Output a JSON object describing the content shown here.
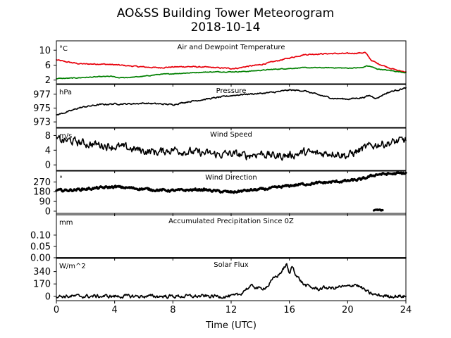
{
  "figure": {
    "title": "AO&SS Building Tower Meteorogram",
    "subtitle": "2018-10-14",
    "xlabel": "Time (UTC)"
  },
  "chart_data": [
    {
      "type": "line",
      "title": "Air and Dewpoint Temperature",
      "unit": "°C",
      "xlim": [
        0,
        24
      ],
      "ylim": [
        1,
        12.5
      ],
      "yticks": [
        2,
        6,
        10
      ],
      "series": [
        {
          "color": "#e8000b",
          "x": [
            0,
            0.5,
            1,
            1.5,
            2,
            3,
            4,
            5,
            6,
            7,
            8,
            9,
            10,
            11,
            12,
            12.5,
            13,
            14,
            15,
            16,
            17,
            18,
            19,
            20,
            21,
            21.2,
            21.6,
            22,
            22.5,
            23,
            23.5,
            24
          ],
          "y": [
            7.4,
            7.0,
            6.7,
            6.4,
            6.3,
            6.3,
            6.1,
            5.8,
            5.5,
            5.3,
            5.5,
            5.6,
            5.5,
            5.3,
            5.1,
            5.2,
            5.6,
            6.1,
            7.0,
            7.9,
            8.8,
            9.0,
            9.1,
            9.1,
            9.3,
            9.4,
            7.4,
            6.5,
            5.8,
            5.1,
            4.5,
            4.2
          ],
          "jitter": 0.12
        },
        {
          "color": "#008000",
          "x": [
            0,
            1,
            2,
            3,
            3.8,
            4.2,
            5,
            6,
            7,
            8,
            9,
            10,
            11,
            12,
            13,
            14,
            15,
            16,
            17,
            18,
            19,
            20,
            21,
            21.3,
            21.6,
            22,
            23,
            24
          ],
          "y": [
            2.4,
            2.5,
            2.7,
            2.9,
            3.0,
            2.6,
            2.7,
            3.0,
            3.5,
            3.7,
            3.9,
            4.1,
            4.2,
            4.2,
            4.3,
            4.6,
            4.9,
            5.1,
            5.3,
            5.3,
            5.3,
            5.2,
            5.3,
            5.8,
            5.6,
            5.0,
            4.5,
            4.0
          ],
          "jitter": 0.08
        }
      ]
    },
    {
      "type": "line",
      "title": "Pressure",
      "unit": "hPa",
      "xlim": [
        0,
        24
      ],
      "ylim": [
        972.2,
        978.4
      ],
      "yticks": [
        973,
        975,
        977
      ],
      "series": [
        {
          "color": "#000000",
          "x": [
            0,
            0.5,
            1,
            1.5,
            2,
            3,
            4,
            5,
            6,
            7,
            8,
            9,
            10,
            11,
            12,
            13,
            14,
            15,
            16,
            17,
            18,
            19,
            20,
            21,
            21.5,
            22,
            22.5,
            23,
            24
          ],
          "y": [
            974.0,
            974.3,
            974.6,
            975.0,
            975.2,
            975.5,
            975.6,
            975.6,
            975.7,
            975.6,
            975.5,
            975.9,
            976.2,
            976.5,
            976.8,
            977.0,
            977.1,
            977.3,
            977.6,
            977.5,
            976.9,
            976.4,
            976.3,
            976.5,
            976.8,
            976.4,
            977.0,
            977.4,
            977.9
          ],
          "jitter": 0.08
        }
      ]
    },
    {
      "type": "line",
      "title": "Wind Speed",
      "unit": "m/s",
      "xlim": [
        0,
        24
      ],
      "ylim": [
        -1.5,
        10
      ],
      "yticks": [
        0,
        4,
        8
      ],
      "series": [
        {
          "color": "#000000",
          "x": [
            0,
            1,
            2,
            3,
            4,
            5,
            6,
            7,
            8,
            9,
            10,
            11,
            12,
            13,
            14,
            15,
            16,
            17,
            18,
            19,
            20,
            21,
            22,
            23,
            24
          ],
          "y": [
            6.8,
            6.5,
            5.8,
            5.5,
            5.0,
            4.5,
            3.8,
            3.5,
            4.2,
            3.6,
            3.2,
            2.8,
            3.0,
            2.5,
            3.2,
            2.4,
            2.6,
            3.4,
            3.0,
            3.4,
            2.5,
            4.3,
            5.6,
            6.0,
            6.8
          ],
          "jitter": 0.9
        }
      ]
    },
    {
      "type": "line",
      "title": "Wind Direction",
      "unit": "°",
      "xlim": [
        0,
        24
      ],
      "ylim": [
        -20,
        370
      ],
      "yticks": [
        0,
        90,
        180,
        270
      ],
      "series": [
        {
          "color": "#000000",
          "x": [
            0,
            1,
            2,
            3,
            4,
            5,
            6,
            7,
            8,
            9,
            10,
            11,
            12,
            13,
            14,
            15,
            16,
            17,
            18,
            19,
            20,
            21,
            21.3,
            22,
            23,
            24
          ],
          "y": [
            190,
            195,
            205,
            215,
            225,
            215,
            205,
            195,
            190,
            195,
            200,
            185,
            175,
            190,
            200,
            215,
            235,
            250,
            260,
            270,
            280,
            295,
            310,
            340,
            345,
            350
          ],
          "jitter": 9
        },
        {
          "color": "#000000",
          "x": [
            21.8,
            22.0,
            22.2,
            22.4
          ],
          "y": [
            8,
            12,
            10,
            6
          ],
          "jitter": 4
        }
      ]
    },
    {
      "type": "area",
      "title": "Accumulated Precipitation Since 0Z",
      "unit": "mm",
      "xlim": [
        0,
        24
      ],
      "ylim": [
        0,
        0.19
      ],
      "yticks": [
        0.0,
        0.05,
        0.1
      ],
      "ytick_labels": [
        "0.00",
        "0.05",
        "0.10"
      ],
      "series": [
        {
          "color": "#000000",
          "x": [
            0,
            24
          ],
          "y": [
            0,
            0
          ],
          "jitter": 0
        }
      ]
    },
    {
      "type": "line",
      "title": "Solar Flux",
      "unit": "W/m^2",
      "xlim": [
        0,
        24
      ],
      "ylim": [
        -60,
        520
      ],
      "yticks": [
        0,
        170,
        340
      ],
      "series": [
        {
          "color": "#000000",
          "x": [
            0,
            12.2,
            12.6,
            13,
            13.5,
            14,
            14.5,
            15,
            15.3,
            15.6,
            15.8,
            16.0,
            16.2,
            16.5,
            17,
            17.5,
            18,
            18.5,
            19,
            19.5,
            20,
            20.5,
            21,
            21.5,
            22,
            22.5,
            24
          ],
          "y": [
            0,
            0,
            25,
            100,
            140,
            100,
            140,
            260,
            300,
            380,
            440,
            300,
            420,
            280,
            160,
            120,
            100,
            120,
            110,
            130,
            130,
            170,
            110,
            40,
            15,
            5,
            0
          ],
          "jitter": 20
        }
      ]
    }
  ],
  "xticks": [
    0,
    4,
    8,
    12,
    16,
    20,
    24
  ]
}
